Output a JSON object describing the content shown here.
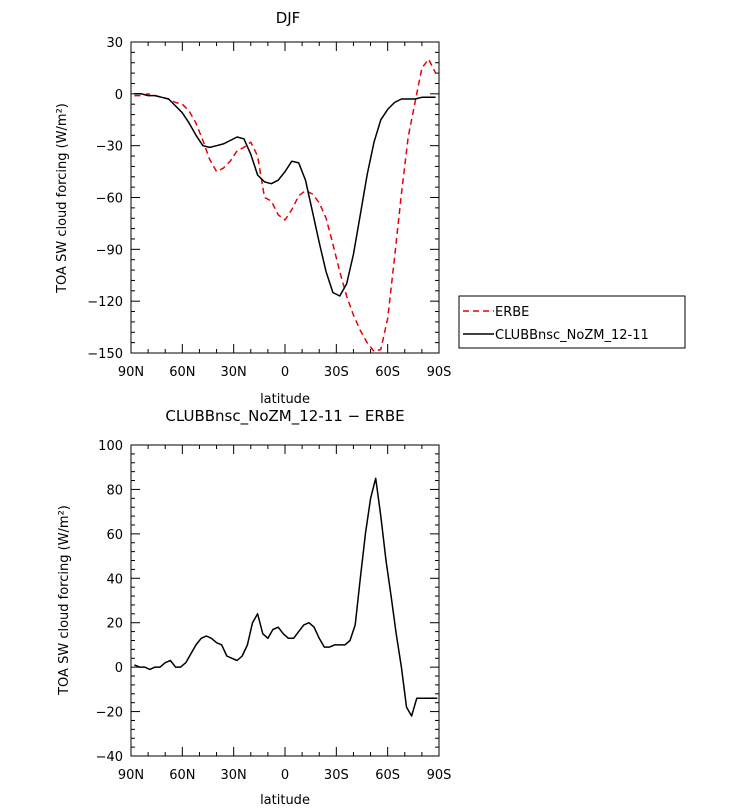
{
  "chart_data": [
    {
      "type": "line",
      "title": "DJF",
      "xlabel": "latitude",
      "ylabel": "TOA SW cloud forcing (W/m²)",
      "xlim": [
        90,
        -90
      ],
      "ylim": [
        -150,
        30
      ],
      "x_ticks": [
        {
          "value": 90,
          "label": "90N"
        },
        {
          "value": 60,
          "label": "60N"
        },
        {
          "value": 30,
          "label": "30N"
        },
        {
          "value": 0,
          "label": "0"
        },
        {
          "value": -30,
          "label": "30S"
        },
        {
          "value": -60,
          "label": "60S"
        },
        {
          "value": -90,
          "label": "90S"
        }
      ],
      "y_ticks": [
        {
          "value": 30,
          "label": "30"
        },
        {
          "value": 0,
          "label": "0"
        },
        {
          "value": -30,
          "label": "−30"
        },
        {
          "value": -60,
          "label": "−60"
        },
        {
          "value": -90,
          "label": "−90"
        },
        {
          "value": -120,
          "label": "−120"
        },
        {
          "value": -150,
          "label": "−150"
        }
      ],
      "legend_position": "right",
      "series": [
        {
          "name": "ERBE",
          "color": "#e8000b",
          "dash": true,
          "x": [
            88,
            84,
            80,
            76,
            72,
            68,
            64,
            60,
            56,
            52,
            48,
            44,
            40,
            36,
            32,
            28,
            24,
            20,
            16,
            12,
            8,
            4,
            0,
            -4,
            -8,
            -12,
            -16,
            -20,
            -24,
            -28,
            -32,
            -36,
            -40,
            -44,
            -48,
            -52,
            -56,
            -60,
            -64,
            -68,
            -72,
            -76,
            -80,
            -84,
            -88
          ],
          "y": [
            -1,
            -1,
            0,
            -1,
            -2,
            -3,
            -5,
            -6,
            -10,
            -17,
            -27,
            -38,
            -45,
            -43,
            -39,
            -33,
            -31,
            -28,
            -36,
            -60,
            -62,
            -70,
            -73,
            -67,
            -59,
            -56,
            -58,
            -63,
            -72,
            -87,
            -103,
            -117,
            -128,
            -137,
            -144,
            -149,
            -148,
            -130,
            -95,
            -58,
            -25,
            -5,
            15,
            20,
            12
          ]
        },
        {
          "name": "CLUBBnsc_NoZM_12-11",
          "color": "#000000",
          "dash": false,
          "x": [
            88,
            84,
            80,
            76,
            72,
            68,
            64,
            60,
            56,
            52,
            48,
            44,
            40,
            36,
            32,
            28,
            24,
            20,
            16,
            12,
            8,
            4,
            0,
            -4,
            -8,
            -12,
            -16,
            -20,
            -24,
            -28,
            -32,
            -36,
            -40,
            -44,
            -48,
            -52,
            -56,
            -60,
            -64,
            -68,
            -72,
            -76,
            -80,
            -84,
            -88
          ],
          "y": [
            0,
            0,
            -1,
            -1,
            -2,
            -3,
            -7,
            -11,
            -17,
            -24,
            -30,
            -31,
            -30,
            -29,
            -27,
            -25,
            -26,
            -35,
            -47,
            -51,
            -52,
            -50,
            -45,
            -39,
            -40,
            -50,
            -68,
            -86,
            -103,
            -115,
            -117,
            -110,
            -93,
            -70,
            -47,
            -28,
            -15,
            -9,
            -5,
            -3,
            -3,
            -3,
            -2,
            -2,
            -2
          ]
        }
      ]
    },
    {
      "type": "line",
      "title": "CLUBBnsc_NoZM_12-11 − ERBE",
      "xlabel": "latitude",
      "ylabel": "TOA SW cloud forcing (W/m²)",
      "xlim": [
        90,
        -90
      ],
      "ylim": [
        -40,
        100
      ],
      "x_ticks": [
        {
          "value": 90,
          "label": "90N"
        },
        {
          "value": 60,
          "label": "60N"
        },
        {
          "value": 30,
          "label": "30N"
        },
        {
          "value": 0,
          "label": "0"
        },
        {
          "value": -30,
          "label": "30S"
        },
        {
          "value": -60,
          "label": "60S"
        },
        {
          "value": -90,
          "label": "90S"
        }
      ],
      "y_ticks": [
        {
          "value": 100,
          "label": "100"
        },
        {
          "value": 80,
          "label": "80"
        },
        {
          "value": 60,
          "label": "60"
        },
        {
          "value": 40,
          "label": "40"
        },
        {
          "value": 20,
          "label": "20"
        },
        {
          "value": 0,
          "label": "0"
        },
        {
          "value": -20,
          "label": "−20"
        },
        {
          "value": -40,
          "label": "−40"
        }
      ],
      "series": [
        {
          "color": "#000000",
          "dash": false,
          "x": [
            88,
            85,
            82,
            79,
            76,
            73,
            70,
            67,
            64,
            61,
            58,
            55,
            52,
            49,
            46,
            43,
            40,
            37,
            34,
            31,
            28,
            25,
            22,
            19,
            16,
            13,
            10,
            7,
            4,
            1,
            -2,
            -5,
            -8,
            -11,
            -14,
            -17,
            -20,
            -23,
            -26,
            -29,
            -32,
            -35,
            -38,
            -41,
            -44,
            -47,
            -50,
            -53,
            -56,
            -59,
            -62,
            -65,
            -68,
            -71,
            -74,
            -77,
            -80,
            -83,
            -86,
            -89
          ],
          "y": [
            1,
            0,
            0,
            -1,
            0,
            0,
            2,
            3,
            0,
            0,
            2,
            6,
            10,
            13,
            14,
            13,
            11,
            10,
            5,
            4,
            3,
            5,
            10,
            20,
            24,
            15,
            13,
            17,
            18,
            15,
            13,
            13,
            16,
            19,
            20,
            18,
            13,
            9,
            9,
            10,
            10,
            10,
            12,
            19,
            40,
            60,
            76,
            85,
            68,
            48,
            32,
            15,
            0,
            -18,
            -22,
            -14,
            -14,
            -14,
            -14,
            -14
          ]
        }
      ]
    }
  ]
}
